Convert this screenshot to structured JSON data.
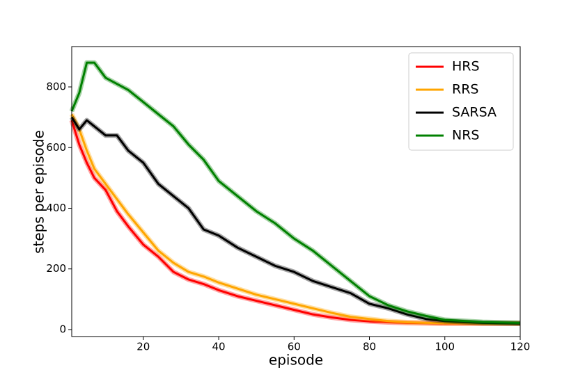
{
  "chart_data": {
    "type": "line",
    "x_label": "episode",
    "y_label": "steps per episode",
    "x": [
      1,
      3,
      5,
      7,
      10,
      13,
      16,
      20,
      24,
      28,
      32,
      36,
      40,
      45,
      50,
      55,
      60,
      65,
      70,
      75,
      80,
      85,
      90,
      95,
      100,
      110,
      120
    ],
    "series": [
      {
        "name": "HRS",
        "color": "#ff0000",
        "values": [
          690,
          610,
          550,
          500,
          460,
          390,
          340,
          280,
          240,
          190,
          165,
          150,
          130,
          110,
          95,
          80,
          65,
          50,
          40,
          32,
          27,
          24,
          22,
          21,
          20,
          20,
          20
        ]
      },
      {
        "name": "RRS",
        "color": "#ffa500",
        "values": [
          710,
          660,
          590,
          530,
          480,
          430,
          380,
          320,
          260,
          220,
          190,
          175,
          155,
          135,
          115,
          100,
          85,
          70,
          55,
          42,
          35,
          28,
          24,
          22,
          21,
          20,
          20
        ]
      },
      {
        "name": "SARSA",
        "color": "#000000",
        "values": [
          700,
          660,
          690,
          670,
          640,
          640,
          590,
          550,
          480,
          440,
          400,
          330,
          310,
          270,
          240,
          210,
          190,
          160,
          140,
          120,
          85,
          70,
          50,
          35,
          28,
          22,
          20
        ]
      },
      {
        "name": "NRS",
        "color": "#008000",
        "values": [
          720,
          780,
          880,
          880,
          830,
          810,
          790,
          750,
          710,
          670,
          610,
          560,
          490,
          440,
          390,
          350,
          300,
          260,
          210,
          160,
          110,
          80,
          60,
          45,
          32,
          25,
          22
        ]
      }
    ],
    "xlim": [
      1,
      120
    ],
    "ylim": [
      -23,
      933
    ],
    "xticks": [
      20,
      40,
      60,
      80,
      100,
      120
    ],
    "yticks": [
      0,
      200,
      400,
      600,
      800
    ],
    "grid": false,
    "legend": "upper right"
  }
}
